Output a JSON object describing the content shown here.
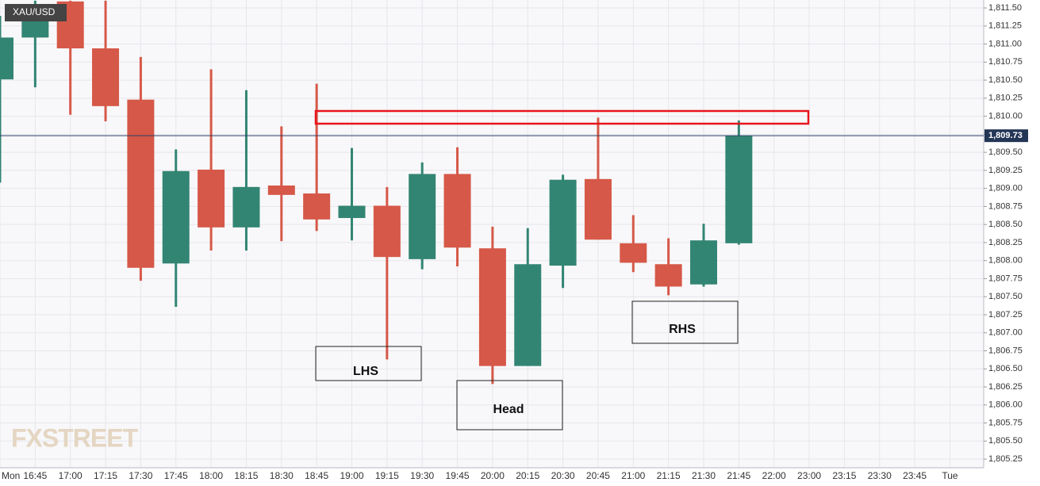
{
  "chart_data": {
    "type": "candlestick",
    "title": "XAU/USD",
    "watermark": "FXSTREET",
    "categories": [
      "Mon",
      "16:45",
      "17:00",
      "17:15",
      "17:30",
      "17:45",
      "18:00",
      "18:15",
      "18:30",
      "18:45",
      "19:00",
      "19:15",
      "19:30",
      "19:45",
      "20:00",
      "20:15",
      "20:30",
      "20:45",
      "21:00",
      "21:15",
      "21:30",
      "21:45",
      "22:00",
      "23:00",
      "23:15",
      "23:30",
      "23:45",
      "Tue"
    ],
    "open": [
      1810.51,
      1811.09,
      1811.59,
      1810.94,
      1810.23,
      1807.96,
      1809.26,
      1808.46,
      1809.04,
      1808.93,
      1808.59,
      1808.76,
      1808.02,
      1809.2,
      1808.17,
      1806.54,
      1807.93,
      1809.13,
      1808.24,
      1807.95,
      1807.67,
      1808.24,
      null,
      null,
      null,
      null,
      null,
      null
    ],
    "high": [
      1811.39,
      1811.6,
      1811.6,
      1811.6,
      1810.82,
      1809.54,
      1810.65,
      1810.36,
      1809.86,
      1810.45,
      1809.56,
      1809.02,
      1809.36,
      1809.57,
      1808.47,
      1808.45,
      1809.19,
      1809.98,
      1808.63,
      1808.31,
      1808.51,
      1809.94,
      null,
      null,
      null,
      null,
      null,
      null
    ],
    "low": [
      1809.08,
      1810.4,
      1810.02,
      1809.93,
      1807.72,
      1807.36,
      1808.14,
      1808.14,
      1808.27,
      1808.41,
      1808.28,
      1806.63,
      1807.88,
      1807.92,
      1806.29,
      1806.54,
      1807.62,
      1808.29,
      1807.84,
      1807.52,
      1807.64,
      1808.22,
      null,
      null,
      null,
      null,
      null,
      null
    ],
    "close": [
      1811.09,
      1811.55,
      1810.94,
      1810.14,
      1807.9,
      1809.24,
      1808.46,
      1809.02,
      1808.91,
      1808.57,
      1808.76,
      1808.05,
      1809.2,
      1808.18,
      1806.54,
      1807.95,
      1809.12,
      1808.29,
      1807.97,
      1807.64,
      1808.28,
      1809.73,
      null,
      null,
      null,
      null,
      null,
      null
    ],
    "up_color": "#338573",
    "down_color": "#d65848",
    "last_price": {
      "value": 1809.73,
      "label": "1,809.73"
    },
    "annotations": [
      "LHS",
      "Head",
      "RHS"
    ],
    "ylim": [
      1805.13,
      1811.61
    ],
    "yticks": [
      {
        "value": 1805.25,
        "label": "1,805.25"
      },
      {
        "value": 1805.5,
        "label": "1,805.50"
      },
      {
        "value": 1805.75,
        "label": "1,805.75"
      },
      {
        "value": 1806,
        "label": "1,806.00"
      },
      {
        "value": 1806.25,
        "label": "1,806.25"
      },
      {
        "value": 1806.5,
        "label": "1,806.50"
      },
      {
        "value": 1806.75,
        "label": "1,806.75"
      },
      {
        "value": 1807,
        "label": "1,807.00"
      },
      {
        "value": 1807.25,
        "label": "1,807.25"
      },
      {
        "value": 1807.5,
        "label": "1,807.50"
      },
      {
        "value": 1807.75,
        "label": "1,807.75"
      },
      {
        "value": 1808,
        "label": "1,808.00"
      },
      {
        "value": 1808.25,
        "label": "1,808.25"
      },
      {
        "value": 1808.5,
        "label": "1,808.50"
      },
      {
        "value": 1808.75,
        "label": "1,808.75"
      },
      {
        "value": 1809,
        "label": "1,809.00"
      },
      {
        "value": 1809.25,
        "label": "1,809.25"
      },
      {
        "value": 1809.5,
        "label": "1,809.50"
      },
      {
        "value": 1809.75,
        "label": "1,809.75"
      },
      {
        "value": 1810,
        "label": "1,810.00"
      },
      {
        "value": 1810.25,
        "label": "1,810.25"
      },
      {
        "value": 1810.5,
        "label": "1,810.50"
      },
      {
        "value": 1810.75,
        "label": "1,810.75"
      },
      {
        "value": 1811,
        "label": "1,811.00"
      },
      {
        "value": 1811.25,
        "label": "1,811.25"
      },
      {
        "value": 1811.5,
        "label": "1,811.50"
      }
    ],
    "grid": true
  }
}
